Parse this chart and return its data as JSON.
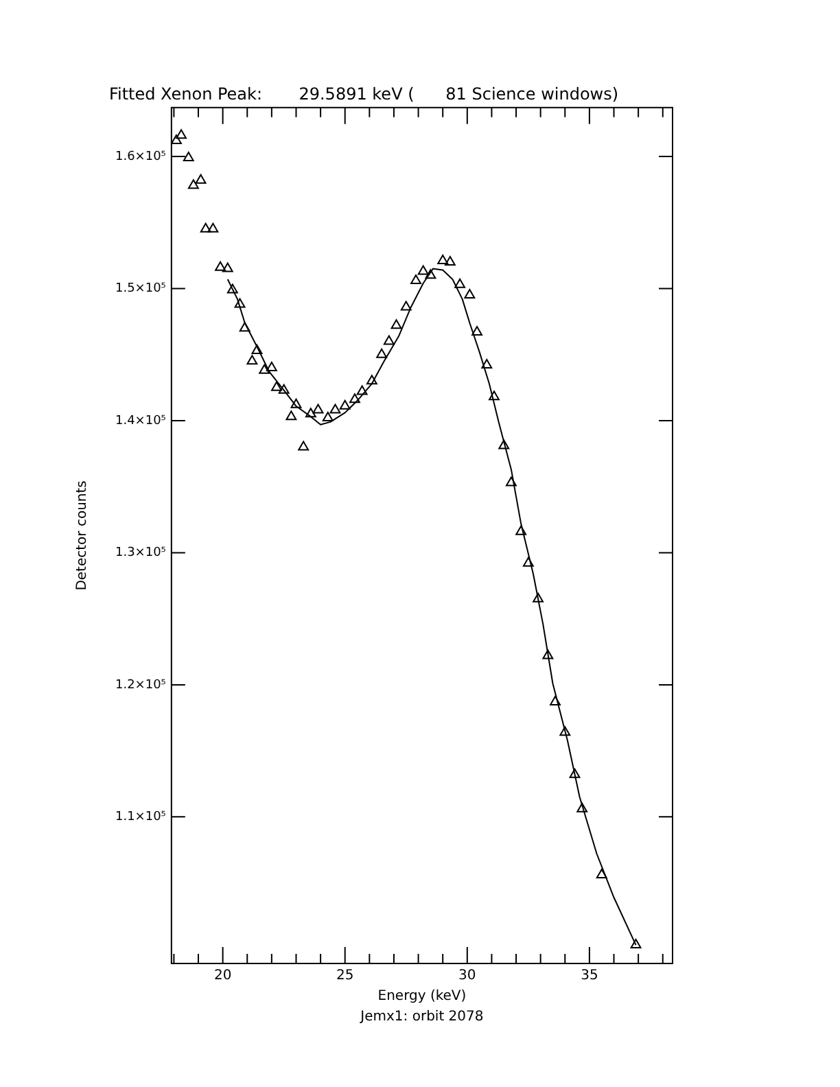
{
  "chart_data": {
    "type": "scatter",
    "title": "Fitted Xenon Peak:       29.5891 keV (      81 Science windows)",
    "xlabel": "Energy (keV)",
    "ylabel": "Detector counts",
    "annotations": [
      "Jemx1: orbit 2078"
    ],
    "xlim": [
      17.9,
      38.4
    ],
    "ylim": [
      98900,
      163700
    ],
    "xticks": [
      {
        "value": 18,
        "label": null
      },
      {
        "value": 19,
        "label": null
      },
      20,
      {
        "value": 21,
        "label": null
      },
      {
        "value": 22,
        "label": null
      },
      {
        "value": 23,
        "label": null
      },
      {
        "value": 24,
        "label": null
      },
      25,
      {
        "value": 26,
        "label": null
      },
      {
        "value": 27,
        "label": null
      },
      {
        "value": 28,
        "label": null
      },
      {
        "value": 29,
        "label": null
      },
      30,
      {
        "value": 31,
        "label": null
      },
      {
        "value": 32,
        "label": null
      },
      {
        "value": 33,
        "label": null
      },
      {
        "value": 34,
        "label": null
      },
      35,
      {
        "value": 36,
        "label": null
      },
      {
        "value": 37,
        "label": null
      },
      {
        "value": 38,
        "label": null
      }
    ],
    "yticks": [
      {
        "value": 110000,
        "label": "1.1×10⁵"
      },
      {
        "value": 120000,
        "label": "1.2×10⁵"
      },
      {
        "value": 130000,
        "label": "1.3×10⁵"
      },
      {
        "value": 140000,
        "label": "1.4×10⁵"
      },
      {
        "value": 150000,
        "label": "1.5×10⁵"
      },
      {
        "value": 160000,
        "label": "1.6×10⁵"
      }
    ],
    "grid": false,
    "legend": false,
    "series": [
      {
        "type": "scatter",
        "marker": "triangle",
        "color": "#000000",
        "x": [
          18.1,
          18.3,
          18.6,
          18.8,
          19.1,
          19.3,
          19.6,
          19.9,
          20.2,
          20.4,
          20.7,
          20.9,
          21.2,
          21.4,
          21.7,
          22.0,
          22.2,
          22.5,
          22.8,
          23.0,
          23.3,
          23.6,
          23.9,
          24.3,
          24.6,
          25.0,
          25.4,
          25.7,
          26.1,
          26.5,
          26.8,
          27.1,
          27.5,
          27.9,
          28.2,
          28.5,
          29.0,
          29.3,
          29.7,
          30.1,
          30.4,
          30.8,
          31.1,
          31.5,
          31.8,
          32.2,
          32.5,
          32.9,
          33.3,
          33.6,
          34.0,
          34.4,
          34.7,
          35.5,
          36.9
        ],
        "values": [
          161200,
          161600,
          159900,
          157800,
          158200,
          154500,
          154500,
          151600,
          151500,
          149900,
          148800,
          147000,
          144500,
          145300,
          143800,
          144000,
          142500,
          142300,
          140300,
          141200,
          138000,
          140500,
          140800,
          140200,
          140800,
          141100,
          141600,
          142200,
          143000,
          145000,
          146000,
          147200,
          148600,
          150600,
          151300,
          151000,
          152100,
          152000,
          150300,
          149500,
          146700,
          144200,
          141800,
          138100,
          135300,
          131600,
          129200,
          126500,
          122200,
          118700,
          116400,
          113200,
          110600,
          105600,
          100300
        ]
      },
      {
        "type": "line",
        "marker": "none",
        "line_style": "solid",
        "color": "#000000",
        "x": [
          20.2,
          20.6,
          20.9,
          21.4,
          21.9,
          22.5,
          23.0,
          23.6,
          24.0,
          24.4,
          25.0,
          25.5,
          26.1,
          26.6,
          27.2,
          27.7,
          28.2,
          28.6,
          29.0,
          29.4,
          29.8,
          30.1,
          30.5,
          30.9,
          31.3,
          31.8,
          32.2,
          32.7,
          33.1,
          33.5,
          34.1,
          34.6,
          35.3,
          36.0,
          36.9
        ],
        "values": [
          150700,
          149200,
          147400,
          145600,
          143700,
          142300,
          141100,
          140300,
          139700,
          139900,
          140600,
          141500,
          142800,
          144500,
          146400,
          148600,
          150400,
          151500,
          151400,
          150700,
          149200,
          147400,
          145200,
          142800,
          139800,
          136300,
          132200,
          128400,
          124600,
          120100,
          115800,
          111500,
          107200,
          103900,
          100300
        ]
      }
    ]
  }
}
